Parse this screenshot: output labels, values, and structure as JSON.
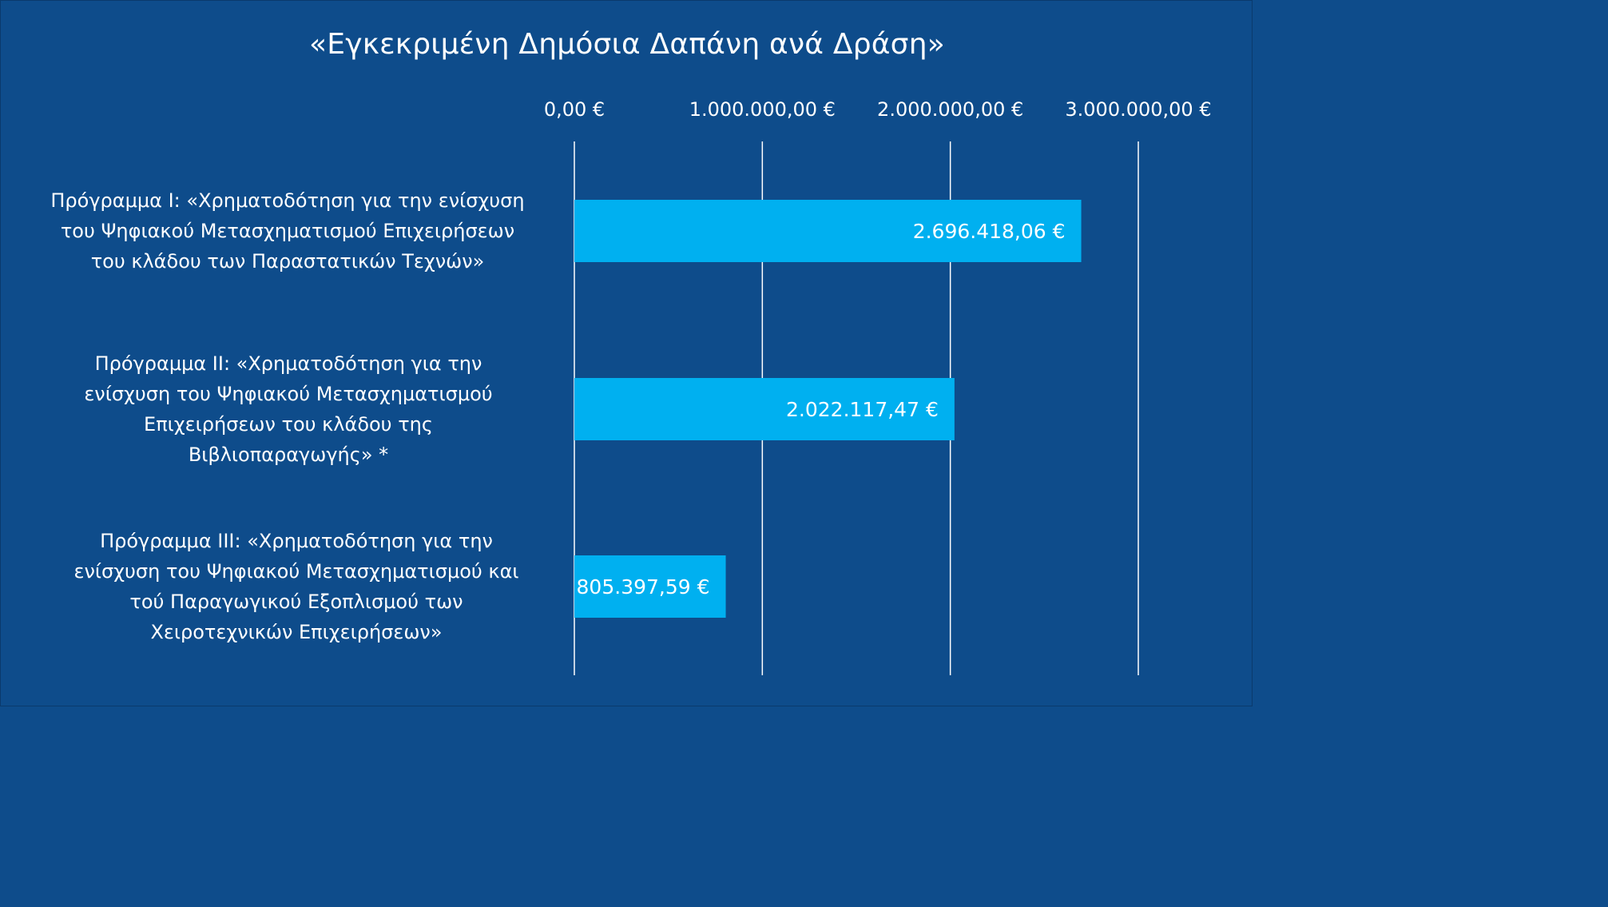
{
  "chart_data": {
    "type": "bar",
    "orientation": "horizontal",
    "title": "«Εγκεκριμένη Δημόσια Δαπάνη ανά Δράση»",
    "xlabel": "",
    "ylabel": "",
    "categories": [
      "Πρόγραμμα Ι: «Χρηματοδότηση για την ενίσχυση\nτου Ψηφιακού Μετασχηματισμού Επιχειρήσεων\nτου κλάδου των Παραστατικών Τεχνών»",
      "Πρόγραμμα ΙΙ: «Χρηματοδότηση για την\nενίσχυση του Ψηφιακού Μετασχηματισμού\nΕπιχειρήσεων του κλάδου της\nΒιβλιοπαραγωγής» *",
      "Πρόγραμμα ΙΙΙ: «Χρηματοδότηση για την\nενίσχυση του Ψηφιακού Μετασχηματισμού και\nτού Παραγωγικού Εξοπλισμού των\nΧειροτεχνικών Επιχειρήσεων»"
    ],
    "values": [
      2696418.06,
      2022117.47,
      805397.59
    ],
    "value_labels": [
      "2.696.418,06 €",
      "2.022.117,47 €",
      "805.397,59 €"
    ],
    "xlim": [
      0,
      3000000
    ],
    "ticks": [
      0,
      1000000,
      2000000,
      3000000
    ],
    "tick_labels": [
      "0,00 €",
      "1.000.000,00 €",
      "2.000.000,00 €",
      "3.000.000,00 €"
    ],
    "axis_position": "top",
    "grid": true,
    "legend": "none",
    "colors": {
      "background": "#0e4c8b",
      "bar": "#00b0f0",
      "text": "#ffffff",
      "gridline": "#ffffff"
    }
  }
}
